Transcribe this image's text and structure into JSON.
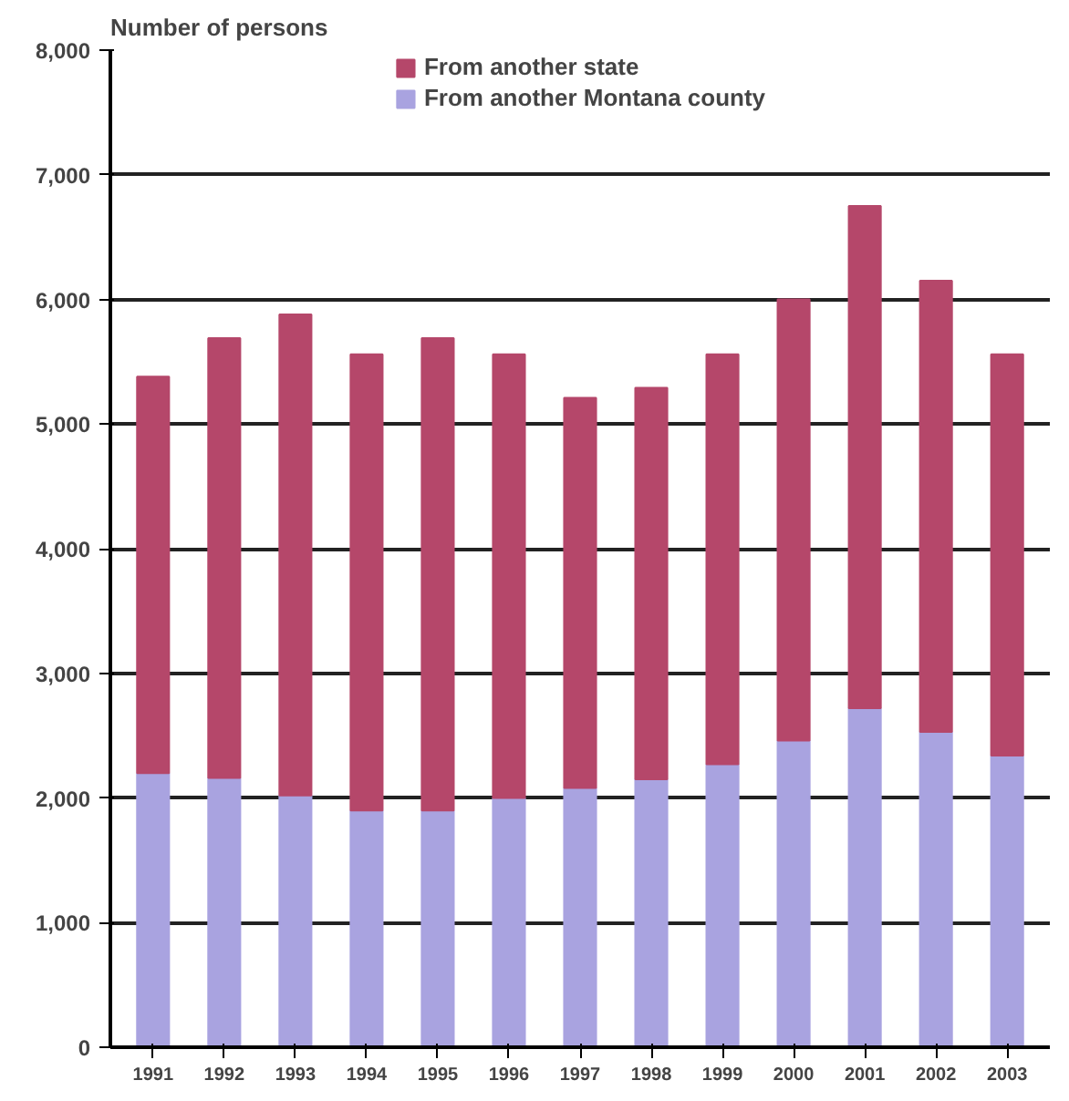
{
  "chart_data": {
    "type": "bar",
    "stacked": true,
    "ylabel": "Number of persons",
    "categories": [
      "1991",
      "1992",
      "1993",
      "1994",
      "1995",
      "1996",
      "1997",
      "1998",
      "1999",
      "2000",
      "2001",
      "2002",
      "2003"
    ],
    "series": [
      {
        "name": "From another Montana county",
        "color": "#a9a3e0",
        "values": [
          2200,
          2160,
          2020,
          1900,
          1900,
          2000,
          2080,
          2150,
          2270,
          2460,
          2720,
          2530,
          2340
        ]
      },
      {
        "name": "From another state",
        "color": "#b5476a",
        "values": [
          3180,
          3530,
          3860,
          3660,
          3790,
          3560,
          3130,
          3140,
          3290,
          3540,
          4030,
          3620,
          3220
        ]
      }
    ],
    "ylim": [
      0,
      8000
    ],
    "yticks": [
      {
        "value": 0,
        "label": "0"
      },
      {
        "value": 1000,
        "label": "1,000"
      },
      {
        "value": 2000,
        "label": "2,000"
      },
      {
        "value": 3000,
        "label": "3,000"
      },
      {
        "value": 4000,
        "label": "4,000"
      },
      {
        "value": 5000,
        "label": "5,000"
      },
      {
        "value": 6000,
        "label": "6,000"
      },
      {
        "value": 7000,
        "label": "7,000"
      },
      {
        "value": 8000,
        "label": "8,000"
      }
    ],
    "grid": "y",
    "legend": "top"
  }
}
